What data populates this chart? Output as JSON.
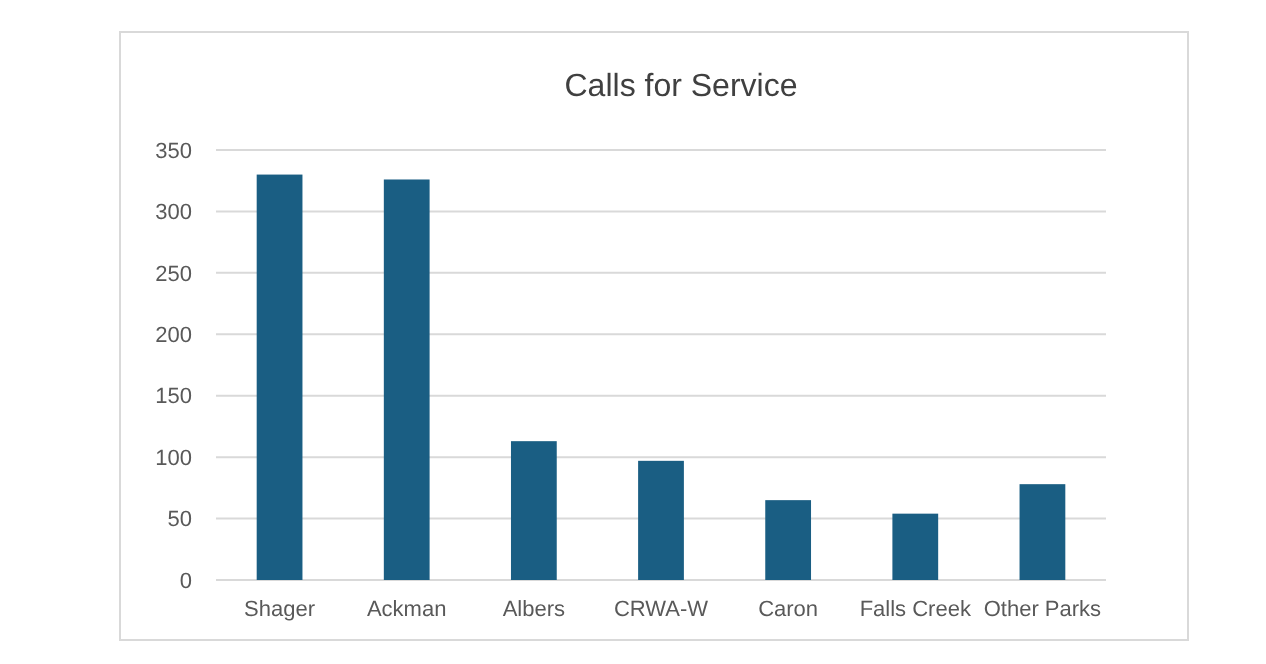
{
  "chart_data": {
    "type": "bar",
    "title": "Calls for Service",
    "categories": [
      "Shager",
      "Ackman",
      "Albers",
      "CRWA-W",
      "Caron",
      "Falls Creek",
      "Other Parks"
    ],
    "values": [
      330,
      326,
      113,
      97,
      65,
      54,
      78
    ],
    "color": "#1a5e83",
    "ylim": [
      0,
      350
    ],
    "yticks": [
      0,
      50,
      100,
      150,
      200,
      250,
      300,
      350
    ],
    "grid": "y"
  }
}
